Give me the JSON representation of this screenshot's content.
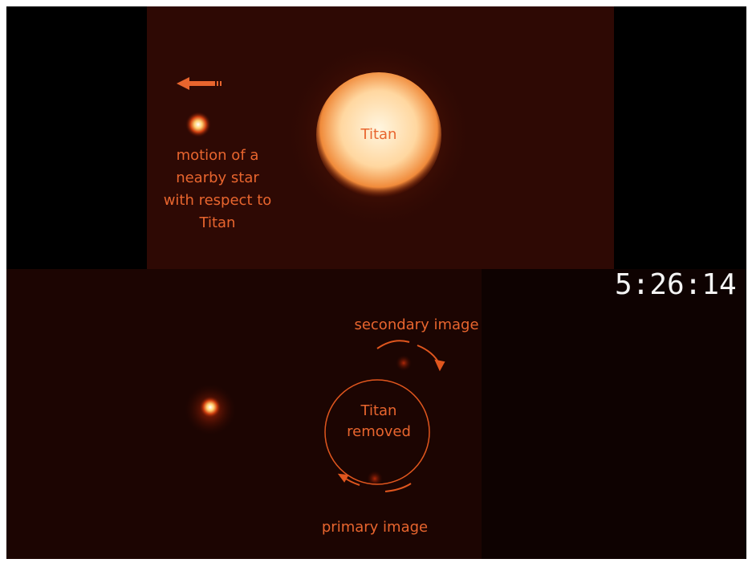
{
  "image": {
    "star_label": [
      "motion of a",
      "nearby star",
      "with respect to",
      "Titan"
    ],
    "titan_label": "Titan",
    "timestamp": "5:26:14",
    "secondary_label": "secondary image",
    "removed_label": [
      "Titan",
      "removed"
    ],
    "primary_label": "primary image"
  }
}
